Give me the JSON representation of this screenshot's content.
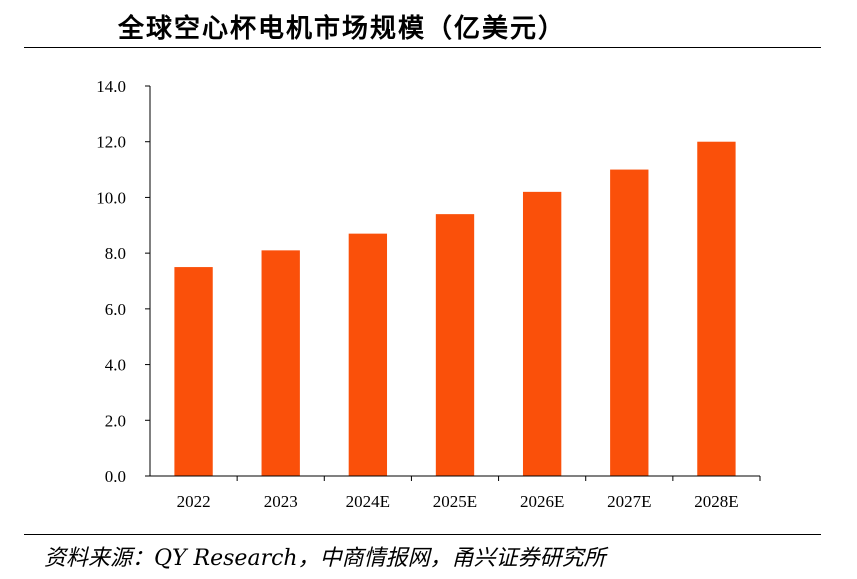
{
  "title": "全球空心杯电机市场规模（亿美元）",
  "source": "资料来源：QY Research，中商情报网，甬兴证券研究所",
  "colors": {
    "bar": "#FA500A",
    "axis": "#000000"
  },
  "chart_data": {
    "type": "bar",
    "title": "全球空心杯电机市场规模（亿美元）",
    "categories": [
      "2022",
      "2023",
      "2024E",
      "2025E",
      "2026E",
      "2027E",
      "2028E"
    ],
    "values": [
      7.5,
      8.1,
      8.7,
      9.4,
      10.2,
      11.0,
      12.0
    ],
    "ylim": [
      0,
      14
    ],
    "yticks": [
      "0.0",
      "2.0",
      "4.0",
      "6.0",
      "8.0",
      "10.0",
      "12.0",
      "14.0"
    ],
    "xlabel": "",
    "ylabel": "",
    "grid": false,
    "legend": "none"
  }
}
